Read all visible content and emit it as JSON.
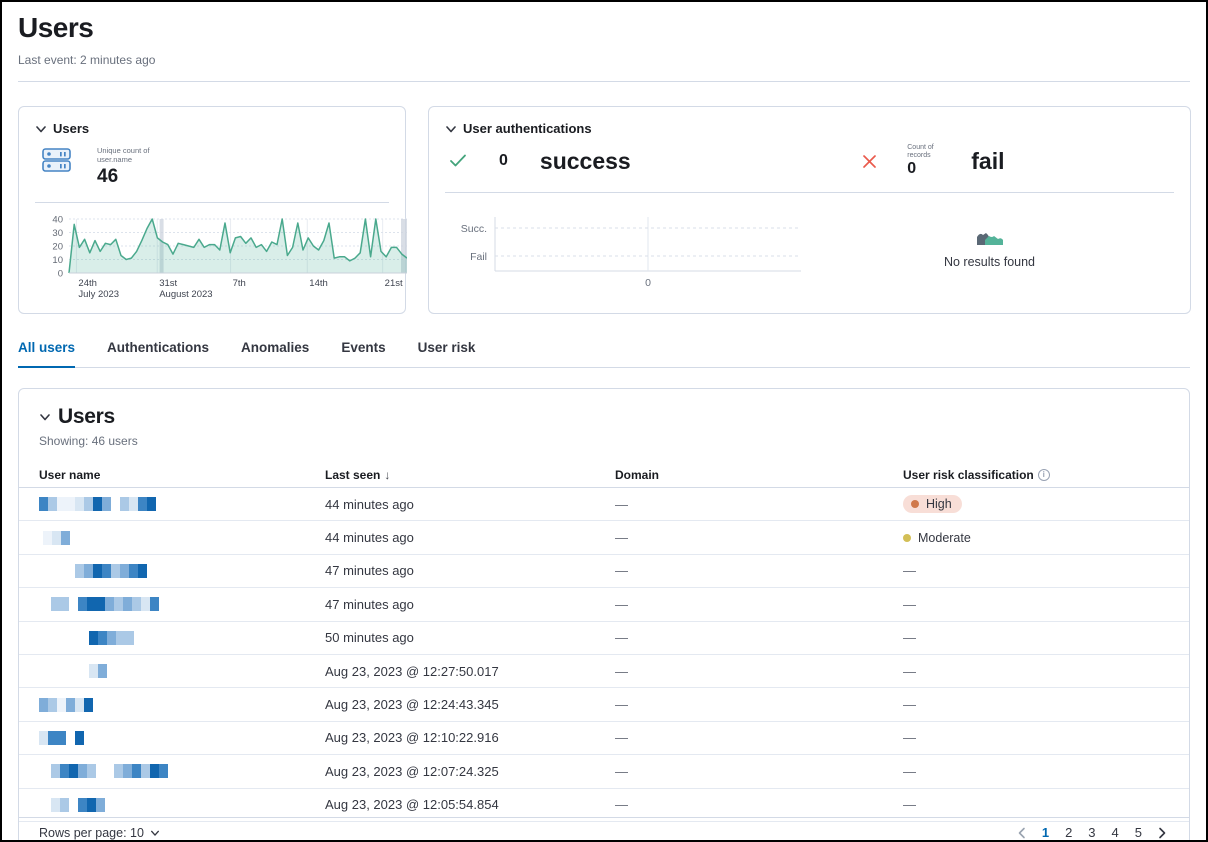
{
  "page": {
    "title": "Users",
    "last_event": "Last event: 2 minutes ago"
  },
  "colors": {
    "accent_blue": "#0068b1",
    "chart_green": "#4aa98d",
    "success_green": "#43a47c",
    "danger_red": "#ea5a4c",
    "high_dot": "#d0784a",
    "high_pill_bg": "#f8ded7",
    "moderate_dot": "#d3bf56"
  },
  "users_panel": {
    "title": "Users",
    "metric_icon": "storage-icon",
    "metric_label": "Unique count of user.name",
    "metric_value": "46",
    "chart_data": {
      "type": "area",
      "title": "Unique count of user.name over time",
      "ylim": [
        0,
        40
      ],
      "yticks": [
        0,
        10,
        20,
        30,
        40
      ],
      "xticks": [
        {
          "pos": 0.022,
          "label": "24th",
          "sub": "July 2023"
        },
        {
          "pos": 0.261,
          "label": "31st",
          "sub": "August 2023"
        },
        {
          "pos": 0.478,
          "label": "7th",
          "sub": ""
        },
        {
          "pos": 0.705,
          "label": "14th",
          "sub": ""
        },
        {
          "pos": 0.928,
          "label": "21st",
          "sub": ""
        }
      ],
      "markers": [
        {
          "pos": 0.268,
          "w": 4
        },
        {
          "pos": 0.985,
          "w": 6
        }
      ],
      "values": [
        0,
        36,
        19,
        25,
        15,
        24,
        16,
        22,
        21,
        25,
        13,
        10,
        11,
        16,
        24,
        33,
        40,
        26,
        23,
        21,
        14,
        22,
        21,
        20,
        19,
        25,
        19,
        21,
        21,
        17,
        37,
        15,
        26,
        27,
        22,
        26,
        19,
        21,
        16,
        23,
        21,
        40,
        13,
        19,
        37,
        17,
        26,
        20,
        17,
        24,
        37,
        11,
        12,
        12,
        9,
        11,
        15,
        40,
        12,
        40,
        16,
        12,
        19,
        19,
        14,
        11
      ]
    }
  },
  "auth_panel": {
    "title": "User authentications",
    "success": {
      "count": "0",
      "label": "success"
    },
    "fail": {
      "count_caption": "Count of records",
      "count": "0",
      "label": "fail"
    },
    "chart_data": {
      "type": "line",
      "categories_y": [
        "Succ.",
        "Fail"
      ],
      "xtick": "0",
      "series": [],
      "note": "empty chart - no data plotted"
    },
    "empty_text": "No results found"
  },
  "tabs": [
    {
      "label": "All users",
      "active": true
    },
    {
      "label": "Authentications",
      "active": false
    },
    {
      "label": "Anomalies",
      "active": false
    },
    {
      "label": "Events",
      "active": false
    },
    {
      "label": "User risk",
      "active": false
    }
  ],
  "table_section": {
    "title": "Users",
    "showing": "Showing: 46 users",
    "columns": {
      "name": "User name",
      "last_seen": "Last seen",
      "domain": "Domain",
      "risk": "User risk classification"
    },
    "sorted_column": "Last seen",
    "mosaic_palette": {
      "f": "#edf3fa",
      "a": "#d8e6f3",
      "b": "#abc9e6",
      "c": "#7fadd9",
      "d": "#3d85c4",
      "e": "#1166af",
      "w": "transparent"
    },
    "rows": [
      {
        "redaction": {
          "indent": 0,
          "cells": [
            "d",
            "b",
            "f",
            "f",
            "a",
            "b",
            "e",
            "c",
            "w",
            "b",
            "a",
            "d",
            "e"
          ]
        },
        "last_seen": "44 minutes ago",
        "domain": "—",
        "risk": "High"
      },
      {
        "redaction": {
          "indent": 4,
          "cells": [
            "f",
            "a",
            "c"
          ]
        },
        "last_seen": "44 minutes ago",
        "domain": "—",
        "risk": "Moderate"
      },
      {
        "redaction": {
          "indent": 36,
          "cells": [
            "b",
            "c",
            "e",
            "d",
            "b",
            "c",
            "d",
            "e"
          ]
        },
        "last_seen": "47 minutes ago",
        "domain": "—",
        "risk": null
      },
      {
        "redaction": {
          "indent": 12,
          "cells": [
            "b",
            "b",
            "w",
            "d",
            "e",
            "e",
            "c",
            "b",
            "c",
            "b",
            "a",
            "d"
          ]
        },
        "last_seen": "47 minutes ago",
        "domain": "—",
        "risk": null
      },
      {
        "redaction": {
          "indent": 50,
          "cells": [
            "e",
            "d",
            "c",
            "b",
            "b"
          ]
        },
        "last_seen": "50 minutes ago",
        "domain": "—",
        "risk": null
      },
      {
        "redaction": {
          "indent": 50,
          "cells": [
            "a",
            "c"
          ]
        },
        "last_seen": "Aug 23, 2023 @ 12:27:50.017",
        "domain": "—",
        "risk": null
      },
      {
        "redaction": {
          "indent": 0,
          "cells": [
            "c",
            "b",
            "f",
            "c",
            "a",
            "e"
          ]
        },
        "last_seen": "Aug 23, 2023 @ 12:24:43.345",
        "domain": "—",
        "risk": null
      },
      {
        "redaction": {
          "indent": 0,
          "cells": [
            "a",
            "d",
            "d",
            "w",
            "e"
          ]
        },
        "last_seen": "Aug 23, 2023 @ 12:10:22.916",
        "domain": "—",
        "risk": null
      },
      {
        "redaction": {
          "indent": 12,
          "cells": [
            "b",
            "d",
            "e",
            "c",
            "b",
            "w",
            "w",
            "b",
            "c",
            "d",
            "b",
            "e",
            "d"
          ]
        },
        "last_seen": "Aug 23, 2023 @ 12:07:24.325",
        "domain": "—",
        "risk": null
      },
      {
        "redaction": {
          "indent": 12,
          "cells": [
            "a",
            "b",
            "w",
            "d",
            "e",
            "c"
          ]
        },
        "last_seen": "Aug 23, 2023 @ 12:05:54.854",
        "domain": "—",
        "risk": null
      }
    ],
    "footer": {
      "rows_per_page": "Rows per page: 10",
      "pages": [
        "1",
        "2",
        "3",
        "4",
        "5"
      ],
      "active_page": "1"
    }
  }
}
